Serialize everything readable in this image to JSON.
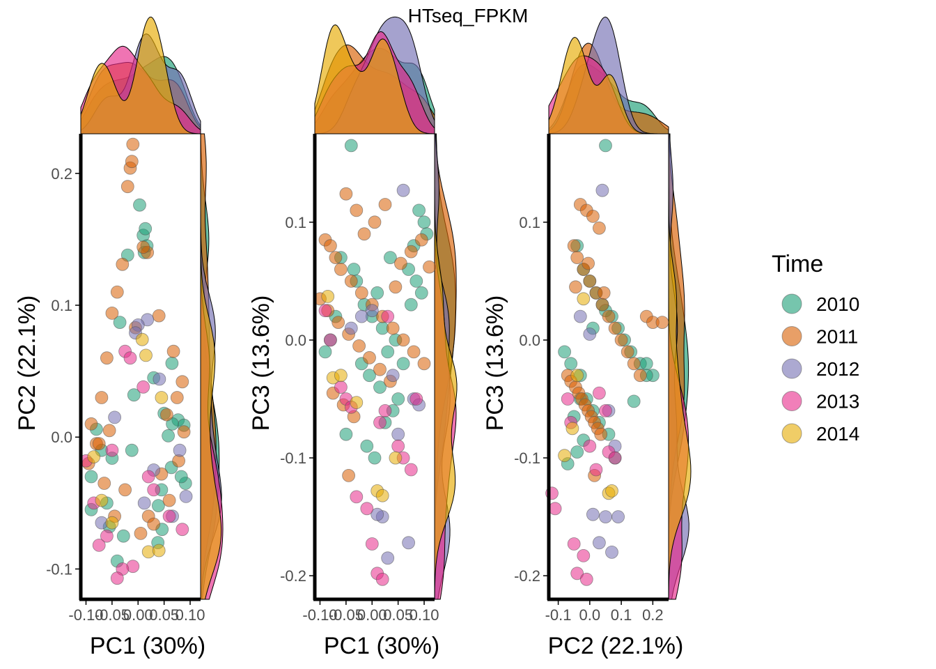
{
  "title": "HTseq_FPKM",
  "legend": {
    "title": "Time",
    "position": "right",
    "entries": [
      {
        "label": "2010",
        "color": "#1B9E77"
      },
      {
        "label": "2011",
        "color": "#D95F02"
      },
      {
        "label": "2012",
        "color": "#7570B3"
      },
      {
        "label": "2013",
        "color": "#E7298A"
      },
      {
        "label": "2014",
        "color": "#E6AB02"
      }
    ]
  },
  "chart_data": [
    {
      "type": "scatter",
      "xlabel": "PC1 (30%)",
      "ylabel": "PC2 (22.1%)",
      "xlim": [
        -0.11,
        0.12
      ],
      "ylim": [
        -0.123,
        0.23
      ],
      "xticks": [
        -0.1,
        -0.05,
        0.0,
        0.05,
        0.1
      ],
      "xtick_labels": [
        "-0.10",
        "-0.05",
        "0.00",
        "0.05",
        "0.10"
      ],
      "yticks": [
        -0.1,
        0.0,
        0.1,
        0.2
      ],
      "ytick_labels": [
        "-0.1",
        "0.0",
        "0.1",
        "0.2"
      ],
      "marginals": "density (top: x, right: y)",
      "series": [
        {
          "name": "2010",
          "x": [
            0.003,
            0.01,
            0.012,
            0.017,
            -0.02,
            0.014,
            -0.07,
            -0.035,
            0.065,
            0.058,
            0.077,
            -0.09,
            -0.055,
            0.038,
            0.045,
            0.064,
            0.05,
            -0.012,
            0.088,
            0.03,
            -0.08,
            0.091,
            -0.04,
            -0.008,
            0.066,
            -0.05,
            -0.09,
            0.039,
            0.046,
            0.083,
            -0.06,
            -0.028
          ],
          "y": [
            0.176,
            0.153,
            0.14,
            0.145,
            0.138,
            0.158,
            -0.01,
            0.087,
            0.056,
            0.001,
            0.013,
            -0.03,
            -0.068,
            -0.08,
            -0.04,
            -0.023,
            0.018,
            -0.01,
            0.009,
            0.045,
            0.006,
            -0.035,
            -0.094,
            0.032,
            0.01,
            -0.016,
            -0.055,
            -0.052,
            -0.07,
            -0.03,
            -0.05,
            -0.075
          ]
        },
        {
          "name": "2011",
          "x": [
            -0.01,
            -0.015,
            -0.012,
            -0.02,
            0.018,
            -0.03,
            0.01,
            -0.04,
            -0.05,
            -0.06,
            -0.07,
            -0.08,
            -0.09,
            -0.095,
            -0.025,
            -0.045,
            -0.065,
            -0.055,
            0.068,
            0.078,
            0.088,
            0.055,
            0.02,
            -0.005,
            0.04,
            0.03,
            0.045,
            0.085,
            0.06,
            0.075,
            0.005,
            -0.075
          ],
          "y": [
            0.222,
            0.204,
            0.209,
            0.19,
            0.14,
            0.131,
            0.144,
            0.11,
            0.094,
            0.06,
            0.03,
            -0.005,
            0.01,
            -0.02,
            -0.04,
            -0.06,
            -0.035,
            0.005,
            0.065,
            -0.018,
            0.004,
            0.017,
            -0.06,
            0.083,
            0.092,
            -0.066,
            -0.028,
            0.042,
            -0.048,
            0.03,
            -0.073,
            -0.005
          ]
        },
        {
          "name": "2012",
          "x": [
            0.018,
            0.0,
            0.041,
            0.08,
            0.092,
            -0.005,
            -0.07,
            0.03,
            -0.045,
            0.012,
            0.066
          ],
          "y": [
            0.089,
            0.085,
            0.044,
            -0.01,
            -0.045,
            0.079,
            -0.065,
            -0.025,
            0.015,
            -0.05,
            -0.06
          ]
        },
        {
          "name": "2013",
          "x": [
            -0.025,
            -0.015,
            -0.01,
            -0.03,
            -0.04,
            -0.06,
            -0.075,
            0.01,
            0.02,
            0.06,
            0.085,
            -0.085,
            -0.1,
            -0.05,
            0.03
          ],
          "y": [
            0.065,
            0.06,
            -0.098,
            -0.1,
            -0.107,
            -0.075,
            -0.082,
            0.038,
            -0.03,
            -0.06,
            -0.07,
            -0.05,
            -0.018,
            -0.01,
            -0.04
          ]
        },
        {
          "name": "2014",
          "x": [
            0.008,
            0.015,
            0.02,
            0.04,
            -0.05,
            -0.085,
            -0.07,
            0.045
          ],
          "y": [
            0.074,
            0.062,
            -0.087,
            -0.086,
            -0.065,
            -0.015,
            -0.048,
            0.03
          ]
        }
      ]
    },
    {
      "type": "scatter",
      "xlabel": "PC1 (30%)",
      "ylabel": "PC3 (13.6%)",
      "xlim": [
        -0.11,
        0.12
      ],
      "ylim": [
        -0.22,
        0.175
      ],
      "xticks": [
        -0.1,
        -0.05,
        0.0,
        0.05,
        0.1
      ],
      "xtick_labels": [
        "-0.10",
        "-0.05",
        "0.00",
        "0.05",
        "0.10"
      ],
      "yticks": [
        -0.2,
        -0.1,
        0.0,
        0.1
      ],
      "ytick_labels": [
        "-0.2",
        "-0.1",
        "0.0",
        "0.1"
      ],
      "marginals": "density (top: x, right: y)",
      "series": [
        {
          "name": "2010",
          "x": [
            -0.04,
            -0.06,
            -0.03,
            -0.015,
            0.0,
            0.01,
            0.02,
            0.03,
            0.045,
            0.07,
            0.08,
            0.09,
            0.1,
            -0.08,
            -0.09,
            -0.07,
            -0.02,
            0.015,
            0.04,
            0.06,
            0.075,
            0.095,
            -0.05,
            -0.01,
            0.005,
            0.025,
            0.05,
            0.085,
            0.105,
            -0.035,
            -0.005,
            0.035
          ],
          "y": [
            0.165,
            0.07,
            0.05,
            0.03,
            0.02,
            0.04,
            0.01,
            -0.01,
            0.0,
            0.06,
            0.08,
            0.11,
            0.1,
            0.0,
            -0.01,
            0.02,
            -0.02,
            -0.04,
            -0.06,
            -0.02,
            0.03,
            0.04,
            -0.08,
            -0.09,
            -0.1,
            -0.07,
            -0.05,
            0.05,
            0.09,
            0.06,
            -0.03,
            0.07
          ]
        },
        {
          "name": "2011",
          "x": [
            -0.05,
            -0.03,
            -0.09,
            -0.08,
            -0.07,
            -0.06,
            -0.04,
            -0.02,
            0.0,
            0.02,
            0.04,
            0.06,
            0.08,
            0.1,
            -0.1,
            -0.085,
            -0.065,
            -0.045,
            -0.025,
            -0.005,
            0.015,
            0.035,
            0.055,
            0.075,
            0.095,
            0.11,
            -0.075,
            -0.055,
            -0.035,
            -0.015,
            0.005,
            0.025,
            0.045,
            -0.045
          ],
          "y": [
            0.124,
            0.11,
            0.085,
            0.08,
            0.07,
            0.06,
            0.05,
            0.04,
            0.03,
            0.02,
            0.01,
            0.0,
            -0.01,
            -0.02,
            0.035,
            0.025,
            0.015,
            0.005,
            -0.005,
            -0.015,
            -0.025,
            -0.035,
            0.065,
            0.075,
            0.085,
            0.062,
            -0.045,
            -0.055,
            -0.065,
            0.09,
            0.1,
            0.115,
            0.045,
            -0.115
          ]
        },
        {
          "name": "2012",
          "x": [
            0.06,
            0.0,
            -0.02,
            0.04,
            0.08,
            0.02,
            0.01,
            0.03,
            0.09,
            0.05,
            0.07,
            -0.04
          ],
          "y": [
            0.127,
            0.025,
            0.02,
            -0.03,
            -0.05,
            -0.15,
            -0.148,
            -0.185,
            -0.055,
            -0.08,
            -0.172,
            0.01
          ]
        },
        {
          "name": "2013",
          "x": [
            -0.09,
            -0.08,
            -0.05,
            -0.04,
            -0.03,
            -0.01,
            0.0,
            0.01,
            0.02,
            0.03,
            0.05,
            0.06,
            0.075,
            0.085,
            -0.06,
            0.015,
            0.025
          ],
          "y": [
            0.025,
            0.0,
            -0.05,
            -0.057,
            -0.133,
            -0.143,
            -0.173,
            -0.198,
            -0.203,
            0.02,
            -0.09,
            -0.1,
            -0.11,
            -0.05,
            -0.04,
            -0.07,
            -0.06
          ]
        },
        {
          "name": "2014",
          "x": [
            -0.085,
            -0.075,
            -0.06,
            0.01,
            0.02,
            0.045,
            -0.03
          ],
          "y": [
            0.037,
            -0.032,
            -0.03,
            -0.128,
            -0.132,
            -0.1,
            -0.053
          ]
        }
      ]
    },
    {
      "type": "scatter",
      "xlabel": "PC2 (22.1%)",
      "ylabel": "PC3 (13.6%)",
      "xlim": [
        -0.13,
        0.25
      ],
      "ylim": [
        -0.22,
        0.175
      ],
      "xticks": [
        -0.1,
        0.0,
        0.1,
        0.2
      ],
      "xtick_labels": [
        "-0.1",
        "0.0",
        "0.1",
        "0.2"
      ],
      "yticks": [
        -0.2,
        -0.1,
        0.0,
        0.1
      ],
      "ytick_labels": [
        "-0.2",
        "-0.1",
        "0.0",
        "0.1"
      ],
      "marginals": "density (top: x, right: y)",
      "series": [
        {
          "name": "2010",
          "x": [
            0.05,
            -0.04,
            -0.02,
            0.0,
            0.02,
            0.04,
            0.07,
            0.09,
            0.11,
            0.13,
            0.16,
            0.18,
            0.2,
            -0.08,
            -0.06,
            -0.03,
            -0.01,
            0.01,
            0.03,
            0.06,
            -0.05,
            -0.03,
            -0.07,
            -0.04,
            0.08,
            0.14,
            0.18,
            -0.02,
            0.01,
            0.05
          ],
          "y": [
            0.165,
            0.08,
            0.06,
            0.05,
            0.04,
            0.03,
            0.02,
            0.01,
            0.0,
            -0.01,
            -0.02,
            -0.02,
            -0.03,
            -0.01,
            -0.02,
            -0.03,
            -0.05,
            -0.06,
            -0.07,
            -0.08,
            -0.065,
            -0.05,
            -0.105,
            -0.095,
            -0.1,
            -0.052,
            -0.03,
            -0.085,
            0.01,
            0.025
          ]
        },
        {
          "name": "2011",
          "x": [
            -0.03,
            -0.01,
            0.01,
            0.03,
            -0.05,
            -0.04,
            -0.02,
            0.0,
            0.02,
            0.04,
            0.06,
            0.08,
            0.1,
            0.12,
            0.14,
            0.16,
            0.18,
            0.2,
            0.23,
            -0.07,
            -0.06,
            -0.045,
            -0.035,
            -0.025,
            -0.015,
            -0.005,
            0.005,
            0.015,
            0.025,
            0.035,
            -0.045,
            -0.005,
            0.015,
            0.045
          ],
          "y": [
            0.115,
            0.11,
            0.105,
            0.095,
            0.08,
            0.07,
            0.06,
            0.05,
            0.04,
            0.03,
            0.02,
            0.01,
            0.0,
            -0.01,
            -0.02,
            -0.03,
            0.02,
            0.015,
            0.015,
            -0.03,
            -0.035,
            -0.04,
            -0.045,
            -0.05,
            -0.055,
            -0.06,
            -0.065,
            -0.07,
            -0.075,
            -0.08,
            0.045,
            0.065,
            -0.115,
            0.04
          ]
        },
        {
          "name": "2012",
          "x": [
            0.04,
            0.0,
            0.05,
            0.07,
            0.09,
            0.01,
            0.03,
            0.08,
            0.06,
            -0.03
          ],
          "y": [
            0.127,
            0.005,
            -0.15,
            -0.18,
            -0.15,
            -0.148,
            -0.172,
            -0.09,
            -0.06,
            0.02
          ]
        },
        {
          "name": "2013",
          "x": [
            -0.12,
            -0.11,
            -0.05,
            -0.04,
            -0.01,
            -0.02,
            0.03,
            0.05,
            -0.07,
            -0.06,
            0.0,
            0.02,
            0.06,
            0.08
          ],
          "y": [
            -0.13,
            -0.143,
            -0.173,
            -0.198,
            -0.203,
            -0.183,
            -0.045,
            -0.06,
            -0.05,
            -0.07,
            -0.09,
            -0.11,
            -0.095,
            -0.1
          ],
          "y_note": ""
        },
        {
          "name": "2014",
          "x": [
            -0.08,
            -0.04,
            0.06,
            0.07,
            -0.02,
            -0.055
          ],
          "y": [
            -0.098,
            -0.03,
            -0.13,
            -0.128,
            0.035,
            -0.075
          ]
        }
      ]
    }
  ]
}
